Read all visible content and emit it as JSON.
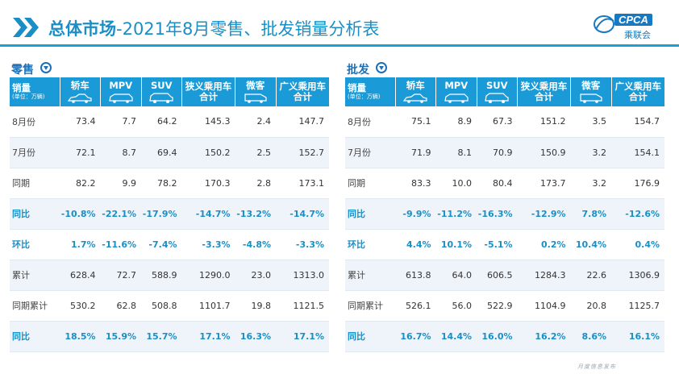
{
  "title": {
    "bold": "总体市场",
    "rest": "-2021年8月零售、批发销量分析表"
  },
  "logo": {
    "text": "CPCA",
    "sub": "乘联会"
  },
  "footer": "月度信息发布",
  "colors": {
    "accent": "#1a9ad6",
    "title": "#1a8fc6",
    "row_alt": "#eef4fa"
  },
  "retail": {
    "label": "零售",
    "columns": [
      {
        "label": "销量",
        "sub": "(单位：万辆)"
      },
      {
        "label": "轿车",
        "icon": "sedan-icon"
      },
      {
        "label": "MPV",
        "icon": "mpv-icon"
      },
      {
        "label": "SUV",
        "icon": "suv-icon"
      },
      {
        "label": "狭义乘用车",
        "label2": "合计"
      },
      {
        "label": "微客",
        "icon": "minivan-icon"
      },
      {
        "label": "广义乘用车",
        "label2": "合计"
      }
    ],
    "rows": [
      {
        "label": "8月份",
        "values": [
          "73.4",
          "7.7",
          "64.2",
          "145.3",
          "2.4",
          "147.7"
        ]
      },
      {
        "label": "7月份",
        "values": [
          "72.1",
          "8.7",
          "69.4",
          "150.2",
          "2.5",
          "152.7"
        ]
      },
      {
        "label": "同期",
        "values": [
          "82.2",
          "9.9",
          "78.2",
          "170.3",
          "2.8",
          "173.1"
        ]
      },
      {
        "label": "同比",
        "values": [
          "-10.8%",
          "-22.1%",
          "-17.9%",
          "-14.7%",
          "-13.2%",
          "-14.7%"
        ]
      },
      {
        "label": "环比",
        "values": [
          "1.7%",
          "-11.6%",
          "-7.4%",
          "-3.3%",
          "-4.8%",
          "-3.3%"
        ]
      },
      {
        "label": "累计",
        "values": [
          "628.4",
          "72.7",
          "588.9",
          "1290.0",
          "23.0",
          "1313.0"
        ]
      },
      {
        "label": "同期累计",
        "values": [
          "530.2",
          "62.8",
          "508.8",
          "1101.7",
          "19.8",
          "1121.5"
        ]
      },
      {
        "label": "同比",
        "values": [
          "18.5%",
          "15.9%",
          "15.7%",
          "17.1%",
          "16.3%",
          "17.1%"
        ]
      }
    ]
  },
  "wholesale": {
    "label": "批发",
    "columns": [
      {
        "label": "销量",
        "sub": "(单位：万辆)"
      },
      {
        "label": "轿车",
        "icon": "sedan-icon"
      },
      {
        "label": "MPV",
        "icon": "mpv-icon"
      },
      {
        "label": "SUV",
        "icon": "suv-icon"
      },
      {
        "label": "狭义乘用车",
        "label2": "合计"
      },
      {
        "label": "微客",
        "icon": "minivan-icon"
      },
      {
        "label": "广义乘用车",
        "label2": "合计"
      }
    ],
    "rows": [
      {
        "label": "8月份",
        "values": [
          "75.1",
          "8.9",
          "67.3",
          "151.2",
          "3.5",
          "154.7"
        ]
      },
      {
        "label": "7月份",
        "values": [
          "71.9",
          "8.1",
          "70.9",
          "150.9",
          "3.2",
          "154.1"
        ]
      },
      {
        "label": "同期",
        "values": [
          "83.3",
          "10.0",
          "80.4",
          "173.7",
          "3.2",
          "176.9"
        ]
      },
      {
        "label": "同比",
        "values": [
          "-9.9%",
          "-11.2%",
          "-16.3%",
          "-12.9%",
          "7.8%",
          "-12.6%"
        ]
      },
      {
        "label": "环比",
        "values": [
          "4.4%",
          "10.1%",
          "-5.1%",
          "0.2%",
          "10.4%",
          "0.4%"
        ]
      },
      {
        "label": "累计",
        "values": [
          "613.8",
          "64.0",
          "606.5",
          "1284.3",
          "22.6",
          "1306.9"
        ]
      },
      {
        "label": "同期累计",
        "values": [
          "526.1",
          "56.0",
          "522.9",
          "1104.9",
          "20.8",
          "1125.7"
        ]
      },
      {
        "label": "同比",
        "values": [
          "16.7%",
          "14.4%",
          "16.0%",
          "16.2%",
          "8.6%",
          "16.1%"
        ]
      }
    ]
  }
}
